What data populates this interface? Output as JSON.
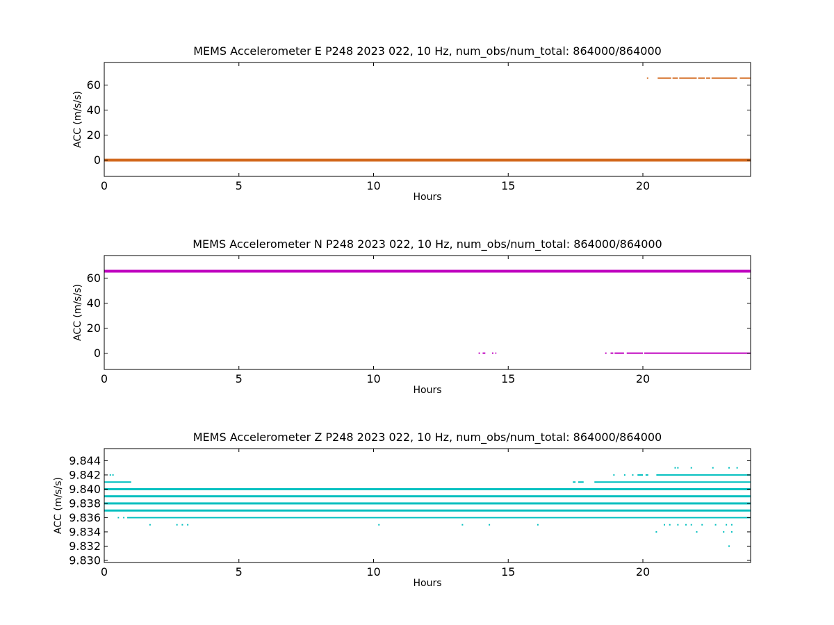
{
  "chart_data": [
    {
      "type": "scatter",
      "title": "MEMS Accelerometer E P248 2023 022, 10 Hz, num_obs/num_total: 864000/864000",
      "xlabel": "Hours",
      "ylabel": "ACC (m/s/s)",
      "xlim": [
        0,
        24
      ],
      "ylim": [
        -13,
        78
      ],
      "xticks": [
        0,
        5,
        10,
        15,
        20
      ],
      "yticks": [
        0,
        20,
        40,
        60
      ],
      "ytick_decimals": 0,
      "color": "#d2691e",
      "series": [
        {
          "kind": "band",
          "x_start": 0,
          "x_end": 24,
          "y": 0
        },
        {
          "kind": "dashes",
          "y": 65.5,
          "x_ranges": [
            [
              20.15,
              20.2
            ],
            [
              20.55,
              21.05
            ],
            [
              21.1,
              21.3
            ],
            [
              21.35,
              22.0
            ],
            [
              22.05,
              22.3
            ],
            [
              22.35,
              22.5
            ],
            [
              22.55,
              23.5
            ],
            [
              23.6,
              24.0
            ]
          ]
        }
      ]
    },
    {
      "type": "scatter",
      "title": "MEMS Accelerometer N P248 2023 022, 10 Hz, num_obs/num_total: 864000/864000",
      "xlabel": "Hours",
      "ylabel": "ACC (m/s/s)",
      "xlim": [
        0,
        24
      ],
      "ylim": [
        -13,
        78
      ],
      "xticks": [
        0,
        5,
        10,
        15,
        20
      ],
      "yticks": [
        0,
        20,
        40,
        60
      ],
      "ytick_decimals": 0,
      "color": "#bf00bf",
      "series": [
        {
          "kind": "band",
          "x_start": 0,
          "x_end": 24,
          "y": 65.5
        },
        {
          "kind": "dashes",
          "y": 0,
          "x_ranges": [
            [
              13.9,
              13.95
            ],
            [
              14.05,
              14.15
            ],
            [
              14.4,
              14.45
            ],
            [
              14.52,
              14.56
            ],
            [
              18.6,
              18.65
            ],
            [
              18.8,
              18.9
            ],
            [
              18.95,
              19.3
            ],
            [
              19.4,
              20.0
            ],
            [
              20.05,
              24.0
            ]
          ]
        }
      ]
    },
    {
      "type": "scatter",
      "title": "MEMS Accelerometer Z P248 2023 022, 10 Hz, num_obs/num_total: 864000/864000",
      "xlabel": "Hours",
      "ylabel": "ACC (m/s/s)",
      "xlim": [
        0,
        24
      ],
      "ylim": [
        9.8297,
        9.8457
      ],
      "xticks": [
        0,
        5,
        10,
        15,
        20
      ],
      "yticks": [
        9.83,
        9.832,
        9.834,
        9.836,
        9.838,
        9.84,
        9.842,
        9.844
      ],
      "ytick_decimals": 3,
      "color": "#00bfbf",
      "series": [
        {
          "kind": "band",
          "x_start": 0,
          "x_end": 24,
          "y": 9.837
        },
        {
          "kind": "band",
          "x_start": 0,
          "x_end": 24,
          "y": 9.838
        },
        {
          "kind": "band",
          "x_start": 0,
          "x_end": 24,
          "y": 9.839
        },
        {
          "kind": "band",
          "x_start": 0,
          "x_end": 24,
          "y": 9.84
        },
        {
          "kind": "line",
          "y": 9.836,
          "x_ranges": [
            [
              0.5,
              0.55
            ],
            [
              0.7,
              0.75
            ],
            [
              0.85,
              24.0
            ]
          ]
        },
        {
          "kind": "line",
          "y": 9.841,
          "x_ranges": [
            [
              0,
              1.0
            ],
            [
              17.4,
              17.5
            ],
            [
              17.6,
              17.8
            ],
            [
              18.2,
              24.0
            ]
          ]
        },
        {
          "kind": "dashes",
          "y": 9.842,
          "x_ranges": [
            [
              0.2,
              0.25
            ],
            [
              0.3,
              0.35
            ],
            [
              18.9,
              18.95
            ],
            [
              19.3,
              19.35
            ],
            [
              19.6,
              19.65
            ],
            [
              19.8,
              20.0
            ],
            [
              20.1,
              20.2
            ],
            [
              20.5,
              24.0
            ]
          ]
        },
        {
          "kind": "points",
          "y": 9.843,
          "x": [
            21.2,
            21.3,
            21.8,
            22.6,
            23.2,
            23.5
          ]
        },
        {
          "kind": "points",
          "y": 9.835,
          "x": [
            1.7,
            2.7,
            2.9,
            3.1,
            10.2,
            13.3,
            14.3,
            16.1,
            20.8,
            21.0,
            21.3,
            21.6,
            21.8,
            22.2,
            22.7,
            23.1,
            23.3
          ]
        },
        {
          "kind": "points",
          "y": 9.834,
          "x": [
            20.5,
            22.0,
            23.0,
            23.3
          ]
        },
        {
          "kind": "points",
          "y": 9.832,
          "x": [
            23.2
          ]
        }
      ]
    }
  ]
}
